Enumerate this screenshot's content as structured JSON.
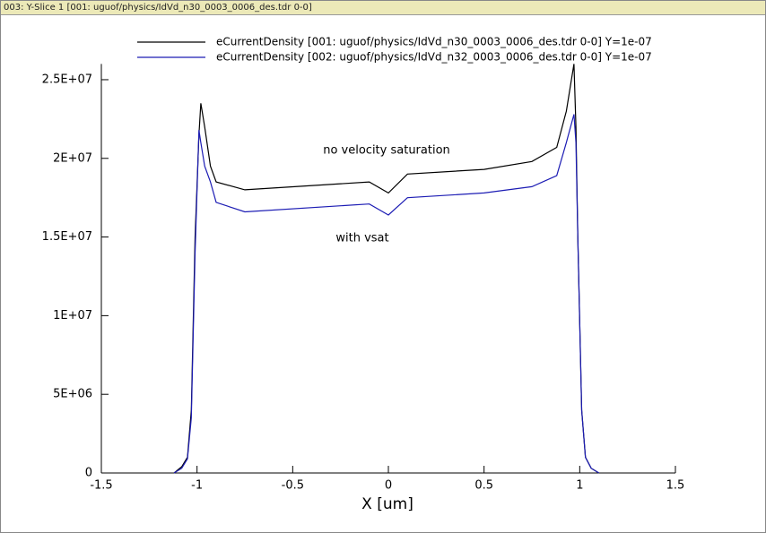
{
  "window_title": "003: Y-Slice 1 [001: uguof/physics/IdVd_n30_0003_0006_des.tdr 0-0]",
  "chart_data": {
    "type": "line",
    "x_label": "X [um]",
    "annotations": [
      "no velocity saturation",
      "with vsat"
    ],
    "x": [
      -1.12,
      -1.08,
      -1.05,
      -1.03,
      -1.01,
      -0.99,
      -0.98,
      -0.96,
      -0.93,
      -0.9,
      -0.75,
      -0.1,
      0,
      0.1,
      0.5,
      0.75,
      0.88,
      0.93,
      0.97,
      0.98,
      0.99,
      1.01,
      1.03,
      1.06,
      1.1
    ],
    "series": [
      {
        "name": "eCurrentDensity [001: uguof/physics/IdVd_n30_0003_0006_des.tdr 0-0] Y=1e-07",
        "color": "#000000",
        "values": [
          0,
          400000,
          1000000,
          4000000,
          15000000,
          21500000,
          23500000,
          22000000,
          19500000,
          18500000,
          18000000,
          18500000,
          17800000,
          19000000,
          19300000,
          19800000,
          20700000,
          23000000,
          26000000,
          22000000,
          15000000,
          4000000,
          1000000,
          300000,
          0
        ]
      },
      {
        "name": "eCurrentDensity [002: uguof/physics/IdVd_n32_0003_0006_des.tdr 0-0] Y=1e-07",
        "color": "#1c1cb4",
        "values": [
          0,
          300000,
          900000,
          3500000,
          14000000,
          21800000,
          21000000,
          19500000,
          18500000,
          17200000,
          16600000,
          17100000,
          16400000,
          17500000,
          17800000,
          18200000,
          18900000,
          21000000,
          22800000,
          21000000,
          15000000,
          4000000,
          1000000,
          300000,
          0
        ]
      }
    ],
    "xlim": [
      -1.5,
      1.5
    ],
    "xticks": [
      -1.5,
      -1,
      -0.5,
      0,
      0.5,
      1,
      1.5
    ],
    "ylim": [
      0,
      26000000
    ],
    "yticks": [
      {
        "value": 0,
        "label": "0"
      },
      {
        "value": 5000000,
        "label": "5E+06"
      },
      {
        "value": 10000000,
        "label": "1E+07"
      },
      {
        "value": 15000000,
        "label": "1.5E+07"
      },
      {
        "value": 20000000,
        "label": "2E+07"
      },
      {
        "value": 25000000,
        "label": "2.5E+07"
      }
    ],
    "grid": false
  }
}
